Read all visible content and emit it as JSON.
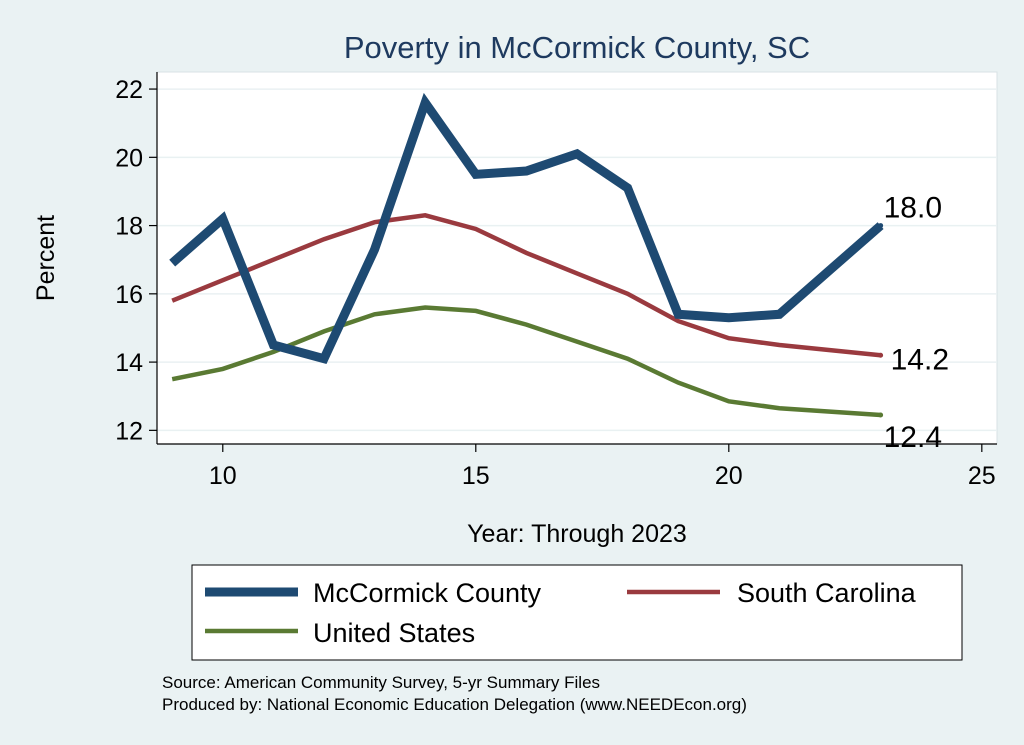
{
  "chart_data": {
    "type": "line",
    "title": "Poverty in McCormick County, SC",
    "xlabel": "Year: Through 2023",
    "ylabel": "Percent",
    "xlim": [
      8.7,
      25.3
    ],
    "ylim": [
      11.6,
      22.5
    ],
    "xticks": [
      10,
      15,
      20,
      25
    ],
    "yticks": [
      12,
      14,
      16,
      18,
      20,
      22
    ],
    "grid": true,
    "legend_position": "bottom",
    "series": [
      {
        "name": "McCormick County",
        "color": "#1e4a72",
        "line_weight": "thick",
        "x": [
          9,
          10,
          11,
          12,
          13,
          14,
          15,
          16,
          17,
          18,
          19,
          20,
          21,
          22,
          23
        ],
        "values": [
          16.9,
          18.2,
          14.5,
          14.1,
          17.3,
          21.6,
          19.5,
          19.6,
          20.1,
          19.1,
          15.4,
          15.3,
          15.4,
          16.7,
          18.0
        ],
        "end_label": "18.0"
      },
      {
        "name": "South Carolina",
        "color": "#9a3a3f",
        "line_weight": "medium",
        "x": [
          9,
          10,
          11,
          12,
          13,
          14,
          15,
          16,
          17,
          18,
          19,
          20,
          21,
          22,
          23
        ],
        "values": [
          15.8,
          16.4,
          17.0,
          17.6,
          18.1,
          18.3,
          17.9,
          17.2,
          16.6,
          16.0,
          15.2,
          14.7,
          14.5,
          14.35,
          14.2
        ],
        "end_label": "14.2"
      },
      {
        "name": "United States",
        "color": "#5a7a33",
        "line_weight": "medium",
        "x": [
          9,
          10,
          11,
          12,
          13,
          14,
          15,
          16,
          17,
          18,
          19,
          20,
          21,
          22,
          23
        ],
        "values": [
          13.5,
          13.8,
          14.3,
          14.9,
          15.4,
          15.6,
          15.5,
          15.1,
          14.6,
          14.1,
          13.4,
          12.85,
          12.65,
          12.55,
          12.45
        ],
        "end_label": "12.4"
      }
    ]
  },
  "source_lines": [
    "Source: American Community Survey, 5-yr Summary Files",
    "Produced by: National Economic Education Delegation (www.NEEDEcon.org)"
  ]
}
